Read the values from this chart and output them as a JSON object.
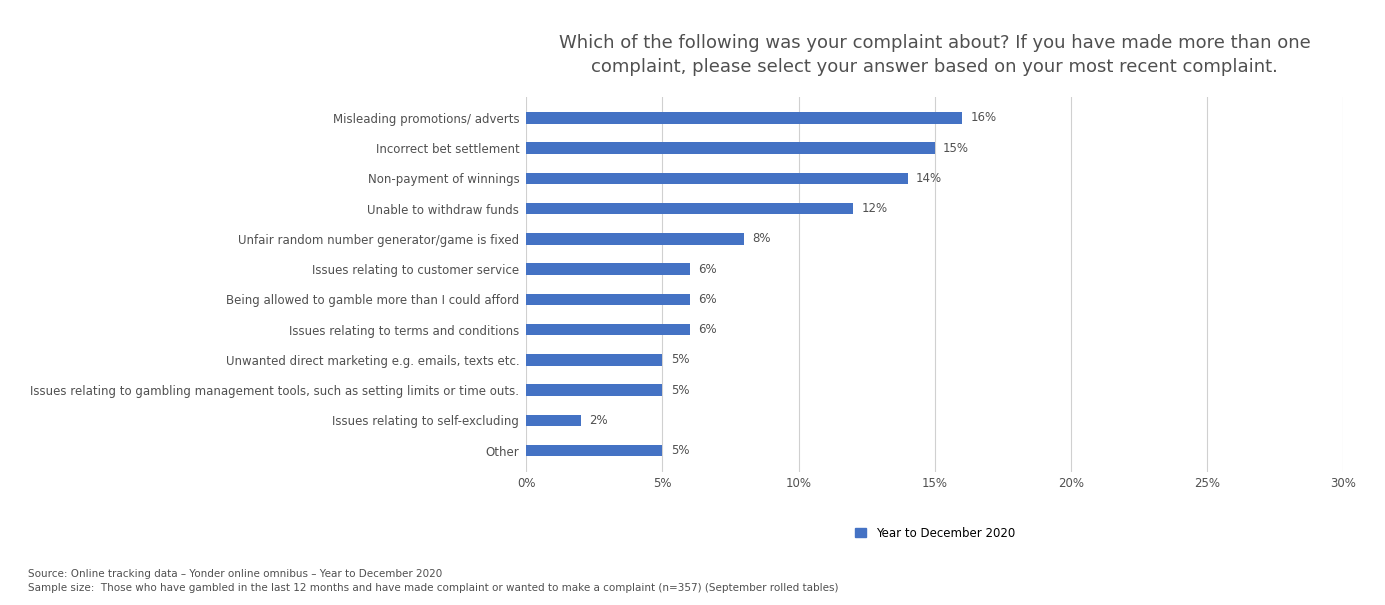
{
  "title": "Which of the following was your complaint about? If you have made more than one\ncomplaint, please select your answer based on your most recent complaint.",
  "categories": [
    "Other",
    "Issues relating to self-excluding",
    "Issues relating to gambling management tools, such as setting limits or time outs.",
    "Unwanted direct marketing e.g. emails, texts etc.",
    "Issues relating to terms and conditions",
    "Being allowed to gamble more than I could afford",
    "Issues relating to customer service",
    "Unfair random number generator/game is fixed",
    "Unable to withdraw funds",
    "Non-payment of winnings",
    "Incorrect bet settlement",
    "Misleading promotions/ adverts"
  ],
  "values": [
    5,
    2,
    5,
    5,
    6,
    6,
    6,
    8,
    12,
    14,
    15,
    16
  ],
  "bar_color": "#4472C4",
  "xlim": [
    0,
    30
  ],
  "xticks": [
    0,
    5,
    10,
    15,
    20,
    25,
    30
  ],
  "xticklabels": [
    "0%",
    "5%",
    "10%",
    "15%",
    "20%",
    "25%",
    "30%"
  ],
  "legend_label": "Year to December 2020",
  "legend_color": "#4472C4",
  "source_text": "Source: Online tracking data – Yonder online omnibus – Year to December 2020\nSample size:  Those who have gambled in the last 12 months and have made complaint or wanted to make a complaint (n=357) (September rolled tables)",
  "title_fontsize": 13,
  "label_fontsize": 8.5,
  "tick_fontsize": 8.5,
  "annotation_fontsize": 8.5,
  "source_fontsize": 7.5,
  "background_color": "#ffffff",
  "grid_color": "#d0d0d0",
  "text_color": "#505050",
  "bar_height": 0.38
}
